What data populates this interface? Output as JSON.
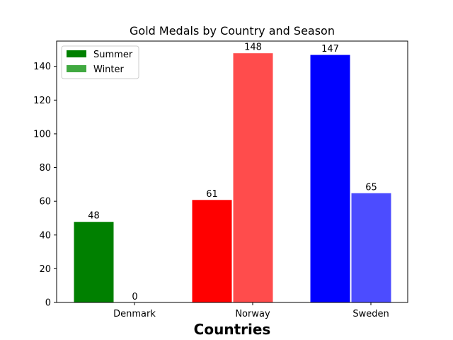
{
  "chart_data": {
    "type": "bar",
    "title": "Gold Medals by Country and Season",
    "xlabel": "Countries",
    "ylabel": "",
    "categories": [
      "Denmark",
      "Norway",
      "Sweden"
    ],
    "series": [
      {
        "name": "Summer",
        "values": [
          48,
          61,
          147
        ]
      },
      {
        "name": "Winter",
        "values": [
          0,
          148,
          65
        ]
      }
    ],
    "ylim": [
      0,
      155
    ],
    "yticks": [
      0,
      20,
      40,
      60,
      80,
      100,
      120,
      140
    ],
    "grid": false,
    "legend_position": "top-left",
    "bar_colors": {
      "Summer": [
        "#008000",
        "#ff0000",
        "#0000ff"
      ],
      "Winter": [
        "#40a940",
        "#ff4c4c",
        "#4c4cff"
      ]
    },
    "legend_colors": {
      "Summer": "#008000",
      "Winter": "#40a940"
    }
  }
}
